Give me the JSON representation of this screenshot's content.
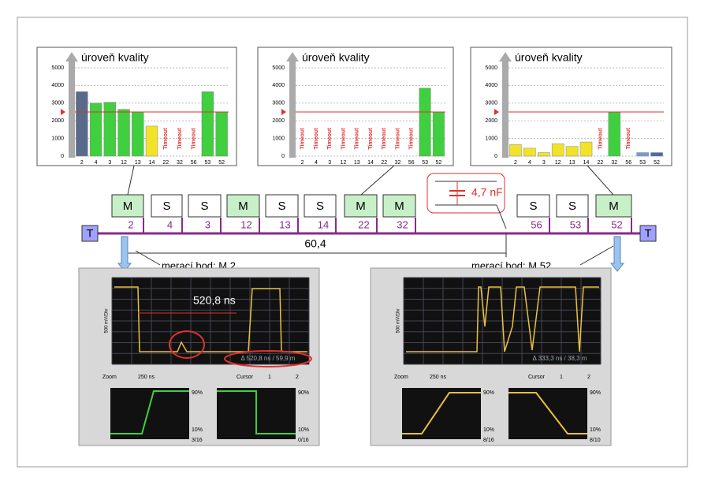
{
  "quality_charts": [
    {
      "title": "úroveň kvality",
      "ylim": [
        0,
        5000
      ],
      "yticks": [
        0,
        1000,
        2000,
        3000,
        4000,
        5000
      ],
      "threshold": 2500,
      "categories": [
        "2",
        "4",
        "3",
        "12",
        "13",
        "14",
        "22",
        "32",
        "56",
        "53",
        "52"
      ],
      "values": [
        3650,
        3000,
        3050,
        2650,
        2500,
        1700,
        null,
        null,
        null,
        3650,
        2500
      ],
      "bar_texts": [
        null,
        null,
        null,
        null,
        null,
        null,
        "Timeout",
        "Timeout",
        "Timeout",
        null,
        null
      ],
      "colors": [
        "#5a6a8a",
        "#3fcf3f",
        "#3fcf3f",
        "#3fcf3f",
        "#3fcf3f",
        "#f2e22a",
        null,
        null,
        null,
        "#3fcf3f",
        "#3fcf3f"
      ]
    },
    {
      "title": "úroveň kvality",
      "ylim": [
        0,
        5000
      ],
      "yticks": [
        0,
        1000,
        2000,
        3000,
        4000,
        5000
      ],
      "threshold": 2500,
      "categories": [
        "2",
        "4",
        "3",
        "12",
        "13",
        "14",
        "22",
        "32",
        "56",
        "53",
        "52"
      ],
      "values": [
        null,
        null,
        null,
        null,
        null,
        null,
        null,
        null,
        null,
        3850,
        2500
      ],
      "bar_texts": [
        "Timeout",
        "Timeout",
        "Timeout",
        "Timeout",
        "Timeout",
        "Timeout",
        "Timeout",
        "Timeout",
        "Timeout",
        null,
        null
      ],
      "colors": [
        null,
        null,
        null,
        null,
        null,
        null,
        null,
        null,
        null,
        "#3fcf3f",
        "#3fcf3f"
      ]
    },
    {
      "title": "úroveň kvality",
      "ylim": [
        0,
        5000
      ],
      "yticks": [
        0,
        1000,
        2000,
        3000,
        4000,
        5000
      ],
      "threshold": 2500,
      "categories": [
        "2",
        "4",
        "3",
        "12",
        "13",
        "14",
        "22",
        "32",
        "56",
        "53",
        "52"
      ],
      "values": [
        650,
        450,
        200,
        700,
        550,
        800,
        null,
        2500,
        null,
        200,
        200
      ],
      "bar_texts": [
        null,
        null,
        null,
        null,
        null,
        null,
        "Timeout",
        null,
        "Timeout",
        null,
        null
      ],
      "colors": [
        "#f2e22a",
        "#f2e22a",
        "#f2e22a",
        "#f2e22a",
        "#f2e22a",
        "#f2e22a",
        null,
        "#3fcf3f",
        null,
        "#7a9ad0",
        "#4a6ab0"
      ]
    }
  ],
  "bus": {
    "terminator": "T",
    "nodes": [
      {
        "type": "M",
        "address": "2"
      },
      {
        "type": "S",
        "address": "4"
      },
      {
        "type": "S",
        "address": "3"
      },
      {
        "type": "M",
        "address": "12"
      },
      {
        "type": "S",
        "address": "13"
      },
      {
        "type": "S",
        "address": "14"
      },
      {
        "type": "M",
        "address": "22"
      },
      {
        "type": "M",
        "address": "32"
      },
      {
        "type": "S",
        "address": "56"
      },
      {
        "type": "S",
        "address": "53"
      },
      {
        "type": "M",
        "address": "52"
      }
    ],
    "distance": "60,4",
    "capacitor": "4,7 nF",
    "point_left": "merací bod: M 2",
    "point_right": "merací bod: M 52"
  },
  "scopes": [
    {
      "delta": "Δ 520,8 ns / 59,9 m",
      "annotation": "520,8 ns",
      "volts": "500 mV/Div",
      "zoom": "Zoom",
      "zoom_value": "250 ns",
      "cursor": "Cursor",
      "cursor_1": "1",
      "cursor_2": "2",
      "top": "90%",
      "bottom": "10%",
      "counts": [
        "3/16",
        "0/16"
      ]
    },
    {
      "delta": "Δ 333,3 ns / 38,3 m",
      "volts": "500 mV/Div",
      "zoom": "Zoom",
      "zoom_value": "250 ns",
      "cursor": "Cursor",
      "cursor_1": "1",
      "cursor_2": "2",
      "top": "90%",
      "bottom": "10%",
      "counts": [
        "8/16",
        "8/10"
      ]
    }
  ]
}
